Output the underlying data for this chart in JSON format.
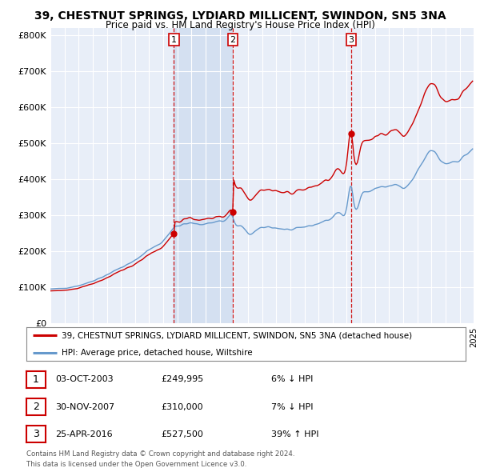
{
  "title": "39, CHESTNUT SPRINGS, LYDIARD MILLICENT, SWINDON, SN5 3NA",
  "subtitle": "Price paid vs. HM Land Registry's House Price Index (HPI)",
  "legend_line1": "39, CHESTNUT SPRINGS, LYDIARD MILLICENT, SWINDON, SN5 3NA (detached house)",
  "legend_line2": "HPI: Average price, detached house, Wiltshire",
  "footer1": "Contains HM Land Registry data © Crown copyright and database right 2024.",
  "footer2": "This data is licensed under the Open Government Licence v3.0.",
  "transactions": [
    {
      "num": 1,
      "date": "03-OCT-2003",
      "price": "£249,995",
      "pct": "6% ↓ HPI",
      "year": 2003.75
    },
    {
      "num": 2,
      "date": "30-NOV-2007",
      "price": "£310,000",
      "pct": "7% ↓ HPI",
      "year": 2007.92
    },
    {
      "num": 3,
      "date": "25-APR-2016",
      "price": "£527,500",
      "pct": "39% ↑ HPI",
      "year": 2016.32
    }
  ],
  "transaction_values": [
    249995,
    310000,
    527500
  ],
  "transaction_years": [
    2003.75,
    2007.92,
    2016.32
  ],
  "ylim": [
    0,
    820000
  ],
  "yticks": [
    0,
    100000,
    200000,
    300000,
    400000,
    500000,
    600000,
    700000,
    800000
  ],
  "ytick_labels": [
    "£0",
    "£100K",
    "£200K",
    "£300K",
    "£400K",
    "£500K",
    "£600K",
    "£700K",
    "£800K"
  ],
  "line_color_red": "#cc0000",
  "line_color_blue": "#6699cc",
  "background_color": "#e8eef8",
  "shade_color": "#d0ddf0",
  "grid_color": "#ffffff",
  "title_fontsize": 10,
  "subtitle_fontsize": 8.5
}
